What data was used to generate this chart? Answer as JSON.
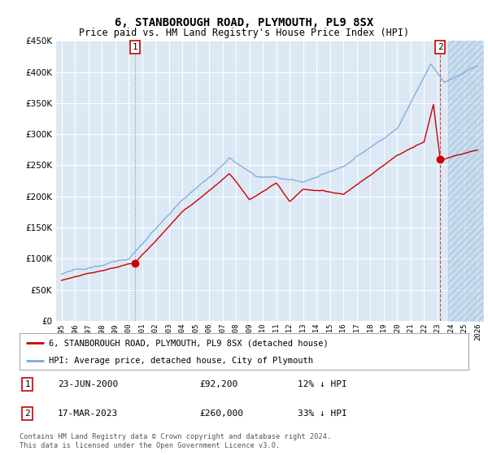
{
  "title": "6, STANBOROUGH ROAD, PLYMOUTH, PL9 8SX",
  "subtitle": "Price paid vs. HM Land Registry's House Price Index (HPI)",
  "bg_color": "#dce9f5",
  "grid_color": "#ffffff",
  "hpi_color": "#7aabdb",
  "price_color": "#cc0000",
  "sale1_x": 2000.47,
  "sale1_y": 92200,
  "sale2_x": 2023.21,
  "sale2_y": 260000,
  "legend_line1": "6, STANBOROUGH ROAD, PLYMOUTH, PL9 8SX (detached house)",
  "legend_line2": "HPI: Average price, detached house, City of Plymouth",
  "table_row1": [
    "1",
    "23-JUN-2000",
    "£92,200",
    "12% ↓ HPI"
  ],
  "table_row2": [
    "2",
    "17-MAR-2023",
    "£260,000",
    "33% ↓ HPI"
  ],
  "footnote": "Contains HM Land Registry data © Crown copyright and database right 2024.\nThis data is licensed under the Open Government Licence v3.0.",
  "xlim": [
    1994.6,
    2026.4
  ],
  "ylim": [
    0,
    450000
  ]
}
